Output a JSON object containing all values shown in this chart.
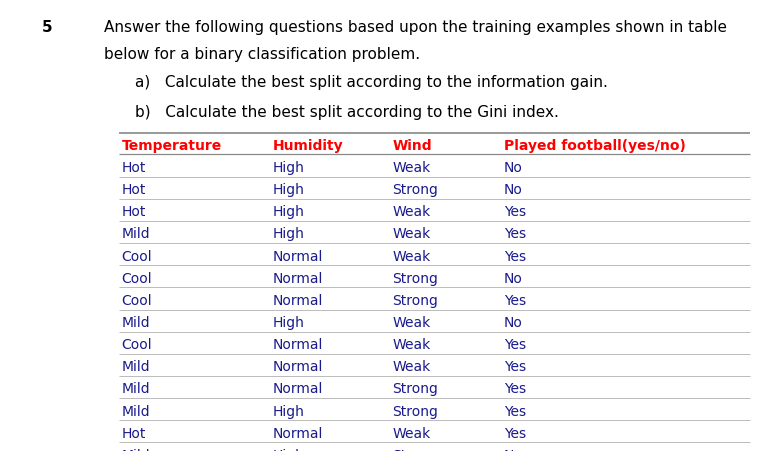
{
  "question_number": "5",
  "question_text_line1": "Answer the following questions based upon the training examples shown in table",
  "question_text_line2": "below for a binary classification problem.",
  "sub_a": "a)   Calculate the best split according to the information gain.",
  "sub_b": "b)   Calculate the best split according to the Gini index.",
  "headers": [
    "Temperature",
    "Humidity",
    "Wind",
    "Played football(yes/no)"
  ],
  "header_color": "#FF0000",
  "row_text_color": "#1a1a8c",
  "rows": [
    [
      "Hot",
      "High",
      "Weak",
      "No"
    ],
    [
      "Hot",
      "High",
      "Strong",
      "No"
    ],
    [
      "Hot",
      "High",
      "Weak",
      "Yes"
    ],
    [
      "Mild",
      "High",
      "Weak",
      "Yes"
    ],
    [
      "Cool",
      "Normal",
      "Weak",
      "Yes"
    ],
    [
      "Cool",
      "Normal",
      "Strong",
      "No"
    ],
    [
      "Cool",
      "Normal",
      "Strong",
      "Yes"
    ],
    [
      "Mild",
      "High",
      "Weak",
      "No"
    ],
    [
      "Cool",
      "Normal",
      "Weak",
      "Yes"
    ],
    [
      "Mild",
      "Normal",
      "Weak",
      "Yes"
    ],
    [
      "Mild",
      "Normal",
      "Strong",
      "Yes"
    ],
    [
      "Mild",
      "High",
      "Strong",
      "Yes"
    ],
    [
      "Hot",
      "Normal",
      "Weak",
      "Yes"
    ],
    [
      "Mild",
      "High",
      "Strong",
      "No"
    ]
  ],
  "background_color": "#ffffff",
  "text_color": "#000000",
  "font_size_question": 11.0,
  "font_size_table": 10.0,
  "table_line_color": "#bbbbbb",
  "table_top_line_color": "#888888"
}
